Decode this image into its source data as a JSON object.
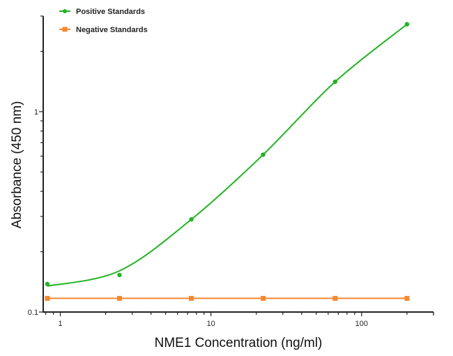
{
  "chart_data": {
    "type": "scatter",
    "title": "",
    "xlabel": "NME1 Concentration (ng/ml)",
    "ylabel": "Absorbance (450 nm)",
    "xscale": "log",
    "yscale": "log",
    "xlim": [
      0.77,
      300
    ],
    "ylim": [
      0.1,
      3
    ],
    "x_ticks": [
      {
        "v": 1,
        "label": "1"
      },
      {
        "v": 10,
        "label": "10"
      },
      {
        "v": 100,
        "label": "100"
      }
    ],
    "y_ticks": [
      {
        "v": 0.1,
        "label": "0.1"
      },
      {
        "v": 1,
        "label": "1"
      }
    ],
    "grid": false,
    "legend_position": "top-left",
    "series": [
      {
        "name": "Positive Standards",
        "color": "#22b322",
        "marker": "circle",
        "line": "fitted curve",
        "x": [
          0.82,
          2.47,
          7.41,
          22.2,
          66.7,
          200
        ],
        "y": [
          0.138,
          0.153,
          0.29,
          0.61,
          1.41,
          2.73
        ]
      },
      {
        "name": "Negative Standards",
        "color": "#f7882f",
        "marker": "square",
        "line": "straight",
        "x": [
          0.82,
          2.47,
          7.41,
          22.2,
          66.7,
          200
        ],
        "y": [
          0.117,
          0.117,
          0.117,
          0.117,
          0.117,
          0.117
        ]
      }
    ]
  }
}
